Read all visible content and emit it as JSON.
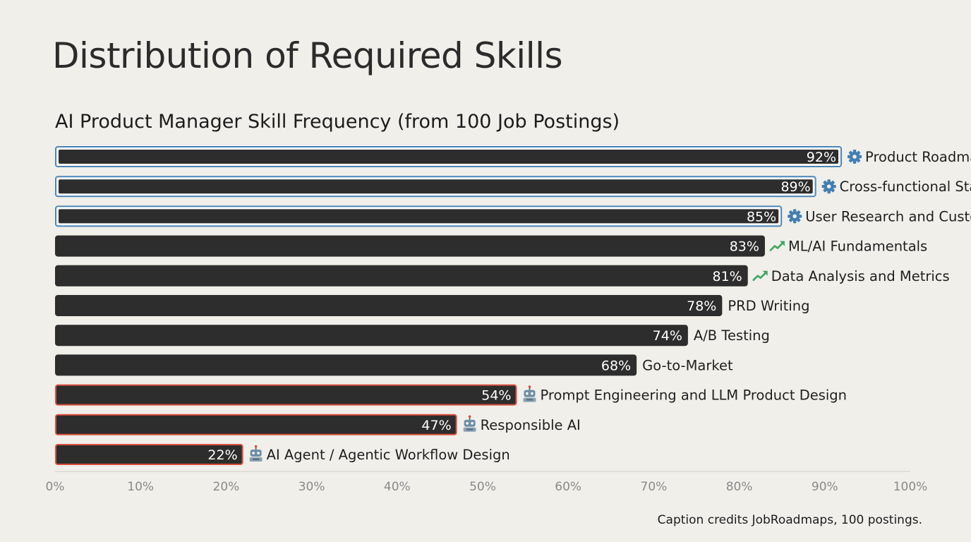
{
  "page": {
    "title": "Distribution of Required Skills",
    "caption": "Caption credits JobRoadmaps, 100 postings."
  },
  "chart_data": {
    "type": "bar",
    "orientation": "horizontal",
    "title": "AI Product Manager Skill Frequency (from 100 Job Postings)",
    "xlabel": "",
    "ylabel": "",
    "xlim": [
      0,
      100
    ],
    "x_ticks": [
      "0%",
      "10%",
      "20%",
      "30%",
      "40%",
      "50%",
      "60%",
      "70%",
      "80%",
      "90%",
      "100%"
    ],
    "grid": false,
    "bar_color": "#2d2d2d",
    "categories": [
      "Product Roadmap Prioritization",
      "Cross-functional Stakeholder Alignment",
      "User Research and Customer Discovery",
      "ML/AI Fundamentals",
      "Data Analysis and Metrics",
      "PRD Writing",
      "A/B Testing",
      "Go-to-Market",
      "Prompt Engineering and LLM Product Design",
      "Responsible AI",
      "AI Agent / Agentic Workflow Design"
    ],
    "values": [
      92,
      89,
      85,
      83,
      81,
      78,
      74,
      68,
      54,
      47,
      22
    ],
    "value_labels": [
      "92%",
      "89%",
      "85%",
      "83%",
      "81%",
      "78%",
      "74%",
      "68%",
      "54%",
      "47%",
      "22%"
    ],
    "highlight": [
      "core",
      "core",
      "core",
      "none",
      "none",
      "none",
      "none",
      "none",
      "emerging",
      "emerging",
      "emerging"
    ],
    "icons": [
      "gear-icon",
      "gear-icon",
      "gear-icon",
      "trend-up-icon",
      "trend-up-icon",
      "none",
      "none",
      "none",
      "robot-icon",
      "robot-icon",
      "robot-icon"
    ],
    "colors": {
      "core_outline": "#4a86b8",
      "emerging_outline": "#d9503f",
      "gear_icon": "#3f7fb5",
      "trend_icon": "#3aa95c",
      "robot_icon": "#6d8fa6",
      "axis": "#cfcdc6"
    }
  }
}
